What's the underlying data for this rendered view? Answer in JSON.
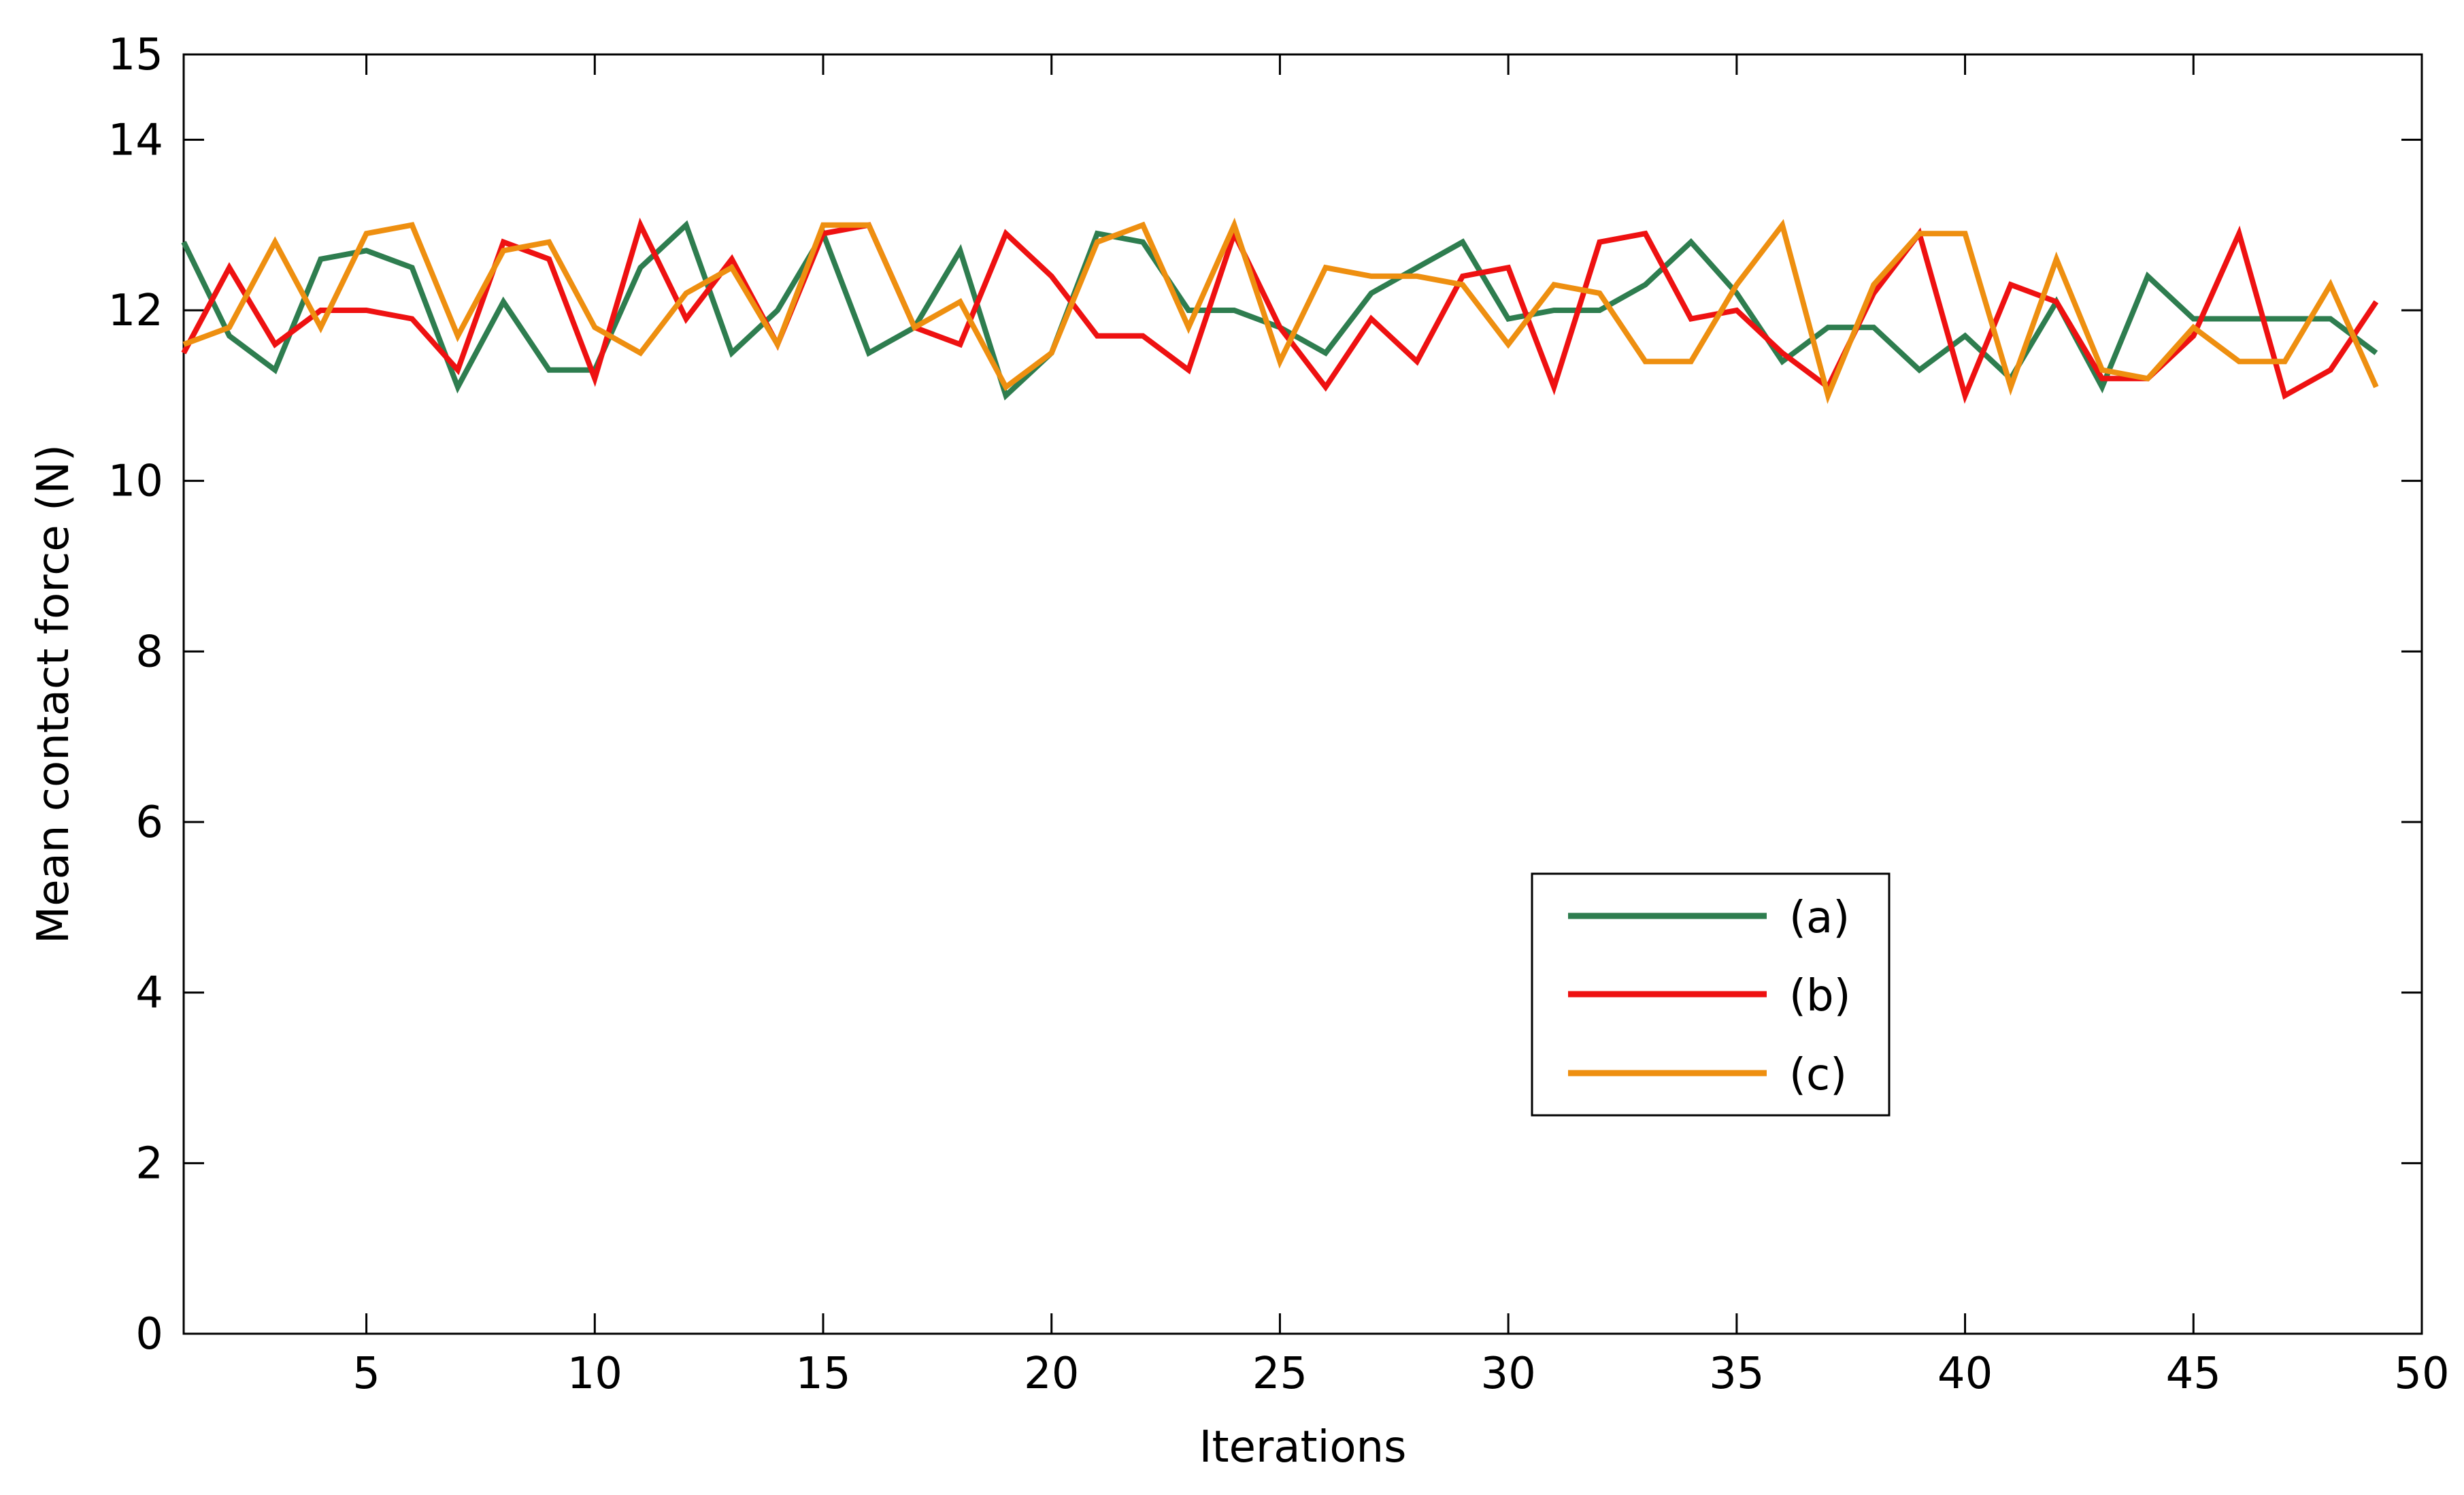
{
  "chart_data": {
    "type": "line",
    "title": "",
    "xlabel": "Iterations",
    "ylabel": "Mean contact force (N)",
    "xlim": [
      1,
      50
    ],
    "ylim": [
      0,
      15
    ],
    "xticks": [
      5,
      10,
      15,
      20,
      25,
      30,
      35,
      40,
      45,
      50
    ],
    "yticks": [
      0,
      2,
      4,
      6,
      8,
      10,
      12,
      14,
      15
    ],
    "grid": false,
    "legend_position": "lower-right",
    "x": [
      1,
      2,
      3,
      4,
      5,
      6,
      7,
      8,
      9,
      10,
      11,
      12,
      13,
      14,
      15,
      16,
      17,
      18,
      19,
      20,
      21,
      22,
      23,
      24,
      25,
      26,
      27,
      28,
      29,
      30,
      31,
      32,
      33,
      34,
      35,
      36,
      37,
      38,
      39,
      40,
      41,
      42,
      43,
      44,
      45,
      46,
      47,
      48,
      49
    ],
    "series": [
      {
        "name": "(a)",
        "color": "#2e7d4f",
        "values": [
          12.8,
          11.7,
          11.3,
          12.6,
          12.7,
          12.5,
          11.1,
          12.1,
          11.3,
          11.3,
          12.5,
          13.0,
          11.5,
          12.0,
          12.9,
          11.5,
          11.8,
          12.7,
          11.0,
          11.5,
          12.9,
          12.8,
          12.0,
          12.0,
          11.8,
          11.5,
          12.2,
          12.5,
          12.8,
          11.9,
          12.0,
          12.0,
          12.3,
          12.8,
          12.2,
          11.4,
          11.8,
          11.8,
          11.3,
          11.7,
          11.2,
          12.1,
          11.1,
          12.4,
          11.9,
          11.9,
          11.9,
          11.9,
          11.5
        ]
      },
      {
        "name": "(b)",
        "color": "#ee1111",
        "values": [
          11.5,
          12.5,
          11.6,
          12.0,
          12.0,
          11.9,
          11.3,
          12.8,
          12.6,
          11.2,
          13.0,
          11.9,
          12.6,
          11.6,
          12.9,
          13.0,
          11.8,
          11.6,
          12.9,
          12.4,
          11.7,
          11.7,
          11.3,
          12.9,
          11.8,
          11.1,
          11.9,
          11.4,
          12.4,
          12.5,
          11.1,
          12.8,
          12.9,
          11.9,
          12.0,
          11.5,
          11.1,
          12.2,
          12.9,
          11.0,
          12.3,
          12.1,
          11.2,
          11.2,
          11.7,
          12.9,
          11.0,
          11.3,
          12.1
        ]
      },
      {
        "name": "(c)",
        "color": "#ee8f10",
        "values": [
          11.6,
          11.8,
          12.8,
          11.8,
          12.9,
          13.0,
          11.7,
          12.7,
          12.8,
          11.8,
          11.5,
          12.2,
          12.5,
          11.6,
          13.0,
          13.0,
          11.8,
          12.1,
          11.1,
          11.5,
          12.8,
          13.0,
          11.8,
          13.0,
          11.4,
          12.5,
          12.4,
          12.4,
          12.3,
          11.6,
          12.3,
          12.2,
          11.4,
          11.4,
          12.3,
          13.0,
          11.0,
          12.3,
          12.9,
          12.9,
          11.1,
          12.6,
          11.3,
          11.2,
          11.8,
          11.4,
          11.4,
          12.3,
          11.1
        ]
      }
    ]
  }
}
